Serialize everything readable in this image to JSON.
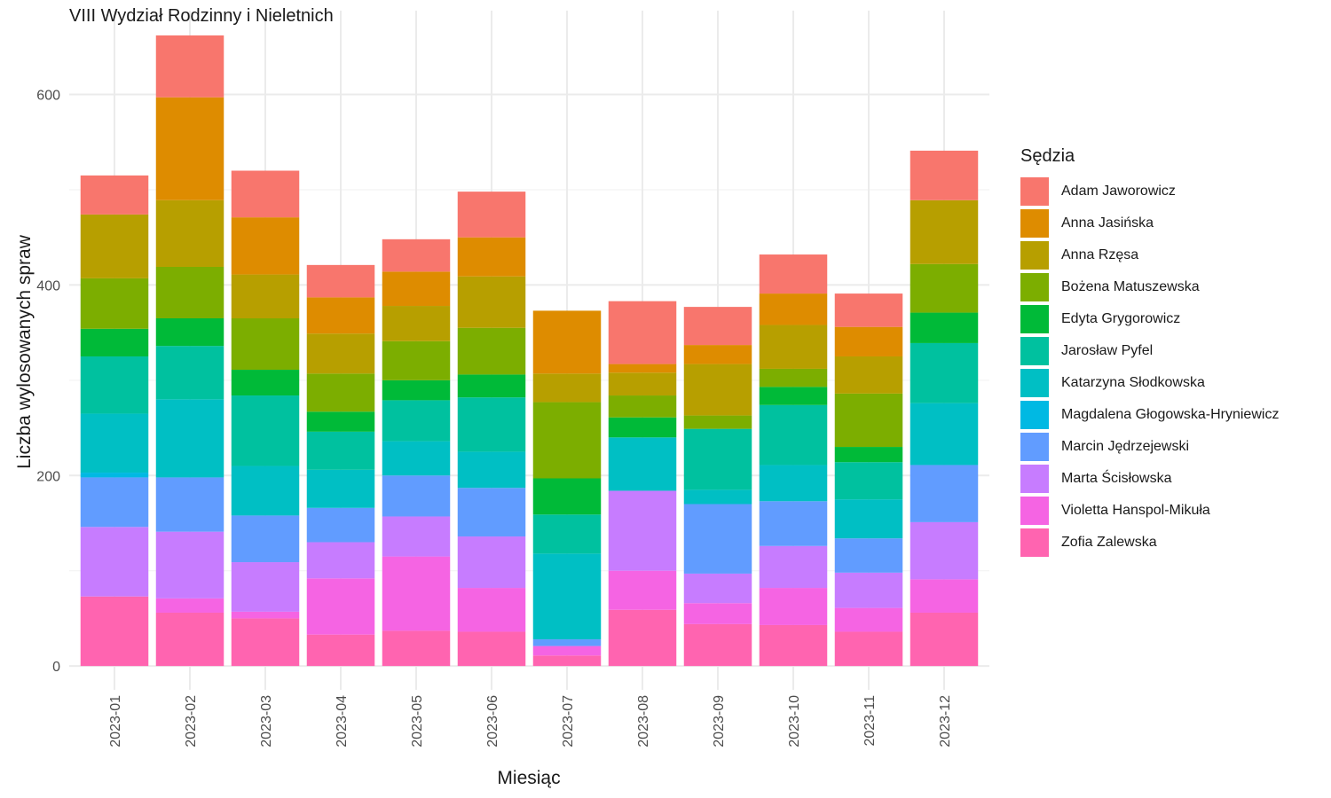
{
  "title": "VIII Wydział Rodzinny i Nieletnich",
  "chart_data": {
    "type": "bar",
    "stacked": true,
    "title": "VIII Wydział Rodzinny i Nieletnich",
    "xlabel": "Miesiąc",
    "ylabel": "Liczba wylosowanych spraw",
    "ylim": [
      -25,
      688
    ],
    "y_ticks": [
      0,
      200,
      400,
      600
    ],
    "y_tick_labels": [
      "0",
      "200",
      "400",
      "600"
    ],
    "grid": true,
    "legend_title": "Sędzia",
    "legend_position": "right",
    "categories": [
      "2023-01",
      "2023-02",
      "2023-03",
      "2023-04",
      "2023-05",
      "2023-06",
      "2023-07",
      "2023-08",
      "2023-09",
      "2023-10",
      "2023-11",
      "2023-12"
    ],
    "series": [
      {
        "name": "Zofia Zalewska",
        "color": "#FF64B0",
        "values": [
          73,
          56,
          50,
          33,
          37,
          36,
          11,
          59,
          44,
          43,
          36,
          56
        ]
      },
      {
        "name": "Violetta Hanspol-Mikuła",
        "color": "#F564E3",
        "values": [
          0,
          15,
          7,
          59,
          78,
          46,
          10,
          41,
          22,
          39,
          25,
          35
        ]
      },
      {
        "name": "Marta Ścisłowska",
        "color": "#C77CFF",
        "values": [
          73,
          70,
          52,
          38,
          42,
          54,
          0,
          84,
          31,
          44,
          37,
          60
        ]
      },
      {
        "name": "Marcin Jędrzejewski",
        "color": "#619CFF",
        "values": [
          52,
          57,
          49,
          36,
          43,
          51,
          7,
          0,
          73,
          47,
          36,
          60
        ]
      },
      {
        "name": "Magdalena Głogowska-Hryniewicz",
        "color": "#00B9E3",
        "values": [
          5,
          0,
          0,
          0,
          0,
          0,
          0,
          0,
          0,
          0,
          0,
          0
        ]
      },
      {
        "name": "Katarzyna Słodkowska",
        "color": "#00BFC4",
        "values": [
          62,
          82,
          52,
          40,
          36,
          38,
          90,
          56,
          15,
          38,
          41,
          65
        ]
      },
      {
        "name": "Jarosław Pyfel",
        "color": "#00C19F",
        "values": [
          60,
          56,
          74,
          40,
          43,
          57,
          41,
          0,
          64,
          63,
          39,
          63
        ]
      },
      {
        "name": "Edyta Grygorowicz",
        "color": "#00BA38",
        "values": [
          29,
          29,
          27,
          21,
          21,
          24,
          38,
          21,
          0,
          19,
          16,
          32
        ]
      },
      {
        "name": "Bożena Matuszewska",
        "color": "#7CAE00",
        "values": [
          53,
          54,
          54,
          40,
          41,
          49,
          80,
          23,
          14,
          19,
          56,
          51
        ]
      },
      {
        "name": "Anna Rzęsa",
        "color": "#B79F00",
        "values": [
          67,
          70,
          46,
          42,
          37,
          54,
          30,
          24,
          54,
          46,
          39,
          67
        ]
      },
      {
        "name": "Anna Jasińska",
        "color": "#DE8C00",
        "values": [
          0,
          108,
          60,
          38,
          36,
          41,
          66,
          9,
          20,
          33,
          31,
          0
        ]
      },
      {
        "name": "Adam Jaworowicz",
        "color": "#F8766D",
        "values": [
          41,
          65,
          49,
          34,
          34,
          48,
          0,
          66,
          40,
          41,
          35,
          52
        ]
      }
    ]
  }
}
